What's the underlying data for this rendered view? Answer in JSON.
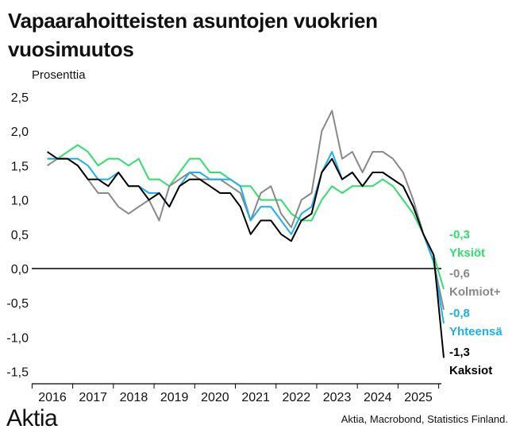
{
  "chart_data": {
    "type": "line",
    "title": "Vapaarahoitteisten asuntojen vuokrien vuosimuutos",
    "ylabel": "Prosenttia",
    "xlabel": "",
    "ylim": [
      -1.6,
      2.6
    ],
    "yticks": [
      "2,5",
      "2,0",
      "1,5",
      "1,0",
      "0,5",
      "0,0",
      "-0,5",
      "-1,0",
      "-1,5"
    ],
    "ytick_values": [
      2.5,
      2.0,
      1.5,
      1.0,
      0.5,
      0.0,
      -0.5,
      -1.0,
      -1.5
    ],
    "xticks": [
      "2016",
      "2017",
      "2018",
      "2019",
      "2020",
      "2021",
      "2022",
      "2023",
      "2024",
      "2025"
    ],
    "xtick_values": [
      2016,
      2017,
      2018,
      2019,
      2020,
      2021,
      2022,
      2023,
      2024,
      2025
    ],
    "x_start": 2015.875,
    "x_step": 0.25,
    "grid": false,
    "series": [
      {
        "name": "Yksiöt",
        "label": "-0,3",
        "color": "#2ee06a",
        "values": [
          1.6,
          1.6,
          1.7,
          1.8,
          1.7,
          1.5,
          1.6,
          1.6,
          1.5,
          1.6,
          1.3,
          1.3,
          1.2,
          1.4,
          1.6,
          1.6,
          1.4,
          1.4,
          1.3,
          1.2,
          1.2,
          1.0,
          1.0,
          1.0,
          0.8,
          0.7,
          0.7,
          1.0,
          1.2,
          1.1,
          1.2,
          1.2,
          1.2,
          1.3,
          1.2,
          1.0,
          0.8,
          0.5,
          0.2,
          -0.3
        ]
      },
      {
        "name": "Kolmiot+",
        "label": "-0,6",
        "color": "#888888",
        "values": [
          1.5,
          1.6,
          1.6,
          1.5,
          1.3,
          1.1,
          1.1,
          0.9,
          0.8,
          0.9,
          1.0,
          0.7,
          1.2,
          1.3,
          1.4,
          1.3,
          1.3,
          1.3,
          1.2,
          1.1,
          0.7,
          1.1,
          1.2,
          0.8,
          0.6,
          1.0,
          1.1,
          2.0,
          2.3,
          1.6,
          1.7,
          1.4,
          1.7,
          1.7,
          1.6,
          1.4,
          1.0,
          0.5,
          0.1,
          -0.6
        ]
      },
      {
        "name": "Yhteensä",
        "label": "-0,8",
        "color": "#1ab0ee",
        "values": [
          1.6,
          1.6,
          1.6,
          1.6,
          1.5,
          1.3,
          1.3,
          1.4,
          1.2,
          1.2,
          1.1,
          1.1,
          0.9,
          1.2,
          1.4,
          1.4,
          1.3,
          1.3,
          1.3,
          1.2,
          0.7,
          0.9,
          0.9,
          0.7,
          0.5,
          0.8,
          0.9,
          1.4,
          1.7,
          1.3,
          1.4,
          1.2,
          1.4,
          1.4,
          1.3,
          1.2,
          0.9,
          0.5,
          0.1,
          -0.8
        ]
      },
      {
        "name": "Kaksiot",
        "label": "-1,3",
        "color": "#000000",
        "values": [
          1.7,
          1.6,
          1.6,
          1.5,
          1.3,
          1.3,
          1.2,
          1.4,
          1.2,
          1.2,
          1.0,
          1.1,
          0.9,
          1.2,
          1.3,
          1.3,
          1.2,
          1.1,
          1.1,
          0.9,
          0.5,
          0.7,
          0.7,
          0.5,
          0.4,
          0.7,
          0.8,
          1.4,
          1.6,
          1.3,
          1.4,
          1.2,
          1.4,
          1.4,
          1.3,
          1.2,
          0.9,
          0.5,
          0.2,
          -1.3
        ]
      }
    ]
  },
  "footer": {
    "logo": "Aktia",
    "source": "Aktia, Macrobond, Statistics Finland."
  }
}
